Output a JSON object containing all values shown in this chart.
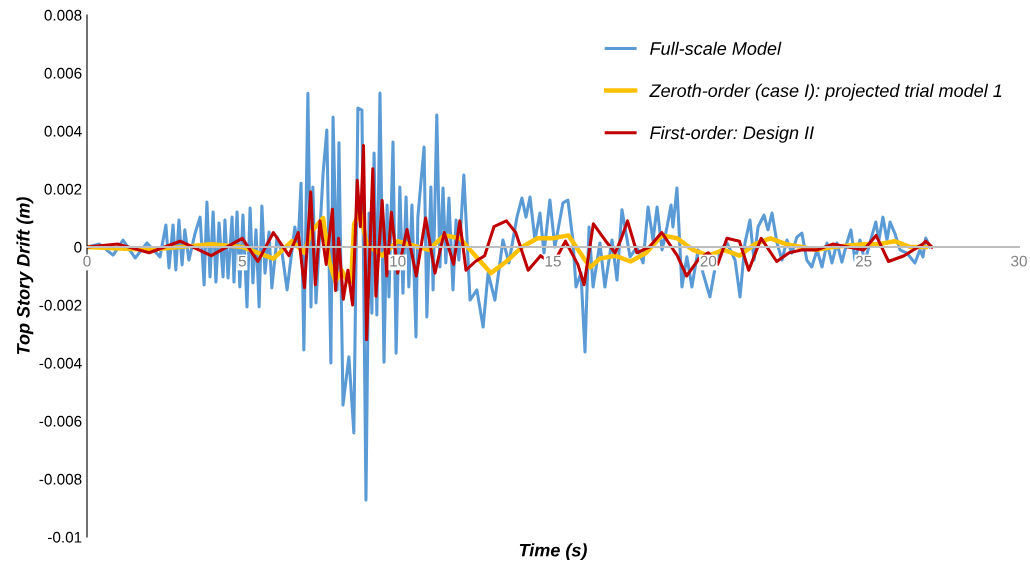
{
  "chart_data": {
    "type": "line",
    "xlabel": "Time (s)",
    "ylabel": "Top Story Drift (m)",
    "xlim": [
      0,
      30
    ],
    "xticks": [
      0,
      5,
      10,
      15,
      20,
      25,
      30
    ],
    "ylim": [
      -0.01,
      0.008
    ],
    "yticks": [
      -0.01,
      -0.008,
      -0.006,
      -0.004,
      -0.002,
      0,
      0.002,
      0.004,
      0.006,
      0.008
    ],
    "grid": false,
    "legend": "top right",
    "marker": "none",
    "line_style": "solid",
    "series": [
      {
        "name": "Full-scale Model",
        "color": "#5b9bd5",
        "x": [
          0,
          0.4,
          0.84,
          1.16,
          1.55,
          1.93,
          2.35,
          2.54,
          2.64,
          2.77,
          2.86,
          2.96,
          3.06,
          3.15,
          3.28,
          3.48,
          3.64,
          3.77,
          3.86,
          3.96,
          4.06,
          4.15,
          4.25,
          4.38,
          4.44,
          4.54,
          4.67,
          4.73,
          4.83,
          4.92,
          5.02,
          5.15,
          5.25,
          5.34,
          5.44,
          5.54,
          5.63,
          5.73,
          5.86,
          5.95,
          6.12,
          6.28,
          6.44,
          6.69,
          6.79,
          6.89,
          6.98,
          7.11,
          7.21,
          7.27,
          7.37,
          7.6,
          7.72,
          7.85,
          7.92,
          8.05,
          8.11,
          8.24,
          8.43,
          8.59,
          8.72,
          8.85,
          8.98,
          9.08,
          9.17,
          9.24,
          9.33,
          9.43,
          9.56,
          9.66,
          9.72,
          9.85,
          9.95,
          10.07,
          10.17,
          10.27,
          10.36,
          10.46,
          10.59,
          10.65,
          10.85,
          10.94,
          11.07,
          11.14,
          11.26,
          11.36,
          11.46,
          11.55,
          11.65,
          11.78,
          11.88,
          11.97,
          12.13,
          12.33,
          12.55,
          12.75,
          12.91,
          13.13,
          13.39,
          13.58,
          13.84,
          14.0,
          14.13,
          14.26,
          14.42,
          14.58,
          14.71,
          14.9,
          15.06,
          15.32,
          15.48,
          15.64,
          15.74,
          15.9,
          16.03,
          16.16,
          16.29,
          16.51,
          16.67,
          16.9,
          17.06,
          17.22,
          17.48,
          17.7,
          17.9,
          18.06,
          18.22,
          18.35,
          18.51,
          18.67,
          18.8,
          18.86,
          18.99,
          19.15,
          19.31,
          19.47,
          19.67,
          19.83,
          20.05,
          20.28,
          20.47,
          20.6,
          20.86,
          21.02,
          21.18,
          21.34,
          21.47,
          21.6,
          21.79,
          21.92,
          22.05,
          22.21,
          22.37,
          22.53,
          22.69,
          22.85,
          23.01,
          23.17,
          23.33,
          23.5,
          23.66,
          23.82,
          23.98,
          24.14,
          24.3,
          24.46,
          24.59,
          24.72,
          24.88,
          25.04,
          25.2,
          25.39,
          25.49,
          25.62,
          25.75,
          25.85,
          26.0,
          26.17,
          26.39,
          26.65,
          26.81,
          26.91,
          27.0,
          27.13
        ],
        "values": [
          0,
          0.0001,
          -0.00028,
          0.00024,
          -0.00038,
          0.00014,
          -0.00034,
          0.00076,
          -0.00072,
          0.00076,
          -0.00079,
          0.00093,
          -0.00062,
          0.00059,
          -0.00045,
          0.00048,
          0.00103,
          -0.00131,
          0.00155,
          -0.00103,
          0.00121,
          -0.00121,
          0.00083,
          -0.00103,
          0.00093,
          -0.00107,
          0.00103,
          -0.00121,
          0.00121,
          -0.00138,
          0.0011,
          -0.00207,
          0.00134,
          -0.00124,
          0.00059,
          -0.00207,
          0.00141,
          -0.0009,
          0.00052,
          -0.00141,
          0.00034,
          -0.00021,
          -0.00148,
          0.00069,
          0,
          0.0022,
          -0.00355,
          0.0053,
          -0.00207,
          0.00207,
          -0.00193,
          0.00255,
          0.00403,
          -0.004,
          0.00448,
          -0.00148,
          0.00359,
          -0.00545,
          -0.00379,
          -0.00641,
          0.00479,
          0.00472,
          -0.00872,
          0.00117,
          -0.00228,
          0.00324,
          -0.00234,
          0.00531,
          -0.00397,
          0.00145,
          -0.00172,
          0.00362,
          -0.00366,
          0.00207,
          -0.00159,
          0.00172,
          -0.00138,
          0.00145,
          -0.0031,
          0.00103,
          0.00345,
          -0.00241,
          0.00207,
          -0.00148,
          0.00455,
          -0.00069,
          0.00203,
          -0.00055,
          0.00169,
          -0.00148,
          0.00093,
          -0.00045,
          0.00248,
          -0.00183,
          -0.00148,
          -0.00276,
          -0.0009,
          -0.00183,
          0.00024,
          -0.00055,
          0.00103,
          0.00169,
          0.00103,
          0.00172,
          0.00024,
          0.00117,
          -0.00021,
          0.00162,
          0,
          0.00152,
          0.00162,
          0.00024,
          -0.00138,
          -0.0009,
          -0.00362,
          0.00069,
          -0.00138,
          0.00014,
          -0.00138,
          0.00024,
          -0.00114,
          0.00128,
          -0.00034,
          0,
          -0.00055,
          0.00138,
          0.00024,
          0.00138,
          -0.0001,
          0.00069,
          0.00145,
          0.00069,
          0.00203,
          -0.00138,
          -0.00034,
          -0.00138,
          -0.0001,
          -0.0009,
          -0.00172,
          -0.00034,
          0,
          0.00014,
          -0.00045,
          -0.00172,
          0.00014,
          0.00093,
          -0.00045,
          0.00069,
          0.0011,
          0.00059,
          0.00117,
          0.00014,
          -0.00045,
          0.00024,
          -0.00021,
          0.00034,
          0.00048,
          -0.00045,
          -0.00069,
          -0.0001,
          -0.00069,
          0.00014,
          -0.00055,
          0.00014,
          -0.00052,
          0.00014,
          0.00059,
          -0.00045,
          0.00024,
          -0.00052,
          0.00014,
          0.00086,
          0.00024,
          0.00103,
          0.00024,
          0.00086,
          0.00048,
          -0.0001,
          -0.00021,
          -0.00055,
          -0.0001,
          -0.00034,
          0.00031,
          0
        ]
      },
      {
        "name": "Zeroth-order (case I): projected trial model 1",
        "color": "#ffc000",
        "x": [
          0,
          2,
          4,
          5,
          6,
          6.6,
          7.0,
          7.2,
          7.6,
          7.8,
          8.0,
          8.2,
          8.4,
          8.5,
          8.6,
          8.8,
          9.0,
          9.5,
          10,
          11,
          11.5,
          12.0,
          12.5,
          13.0,
          13.5,
          14,
          14.5,
          15,
          15.5,
          16,
          16.2,
          16.5,
          17.0,
          17.5,
          18.0,
          18.5,
          19,
          19.5,
          20,
          20.5,
          21.0,
          21.5,
          22,
          22.5,
          23,
          23.5,
          24,
          25,
          25.5,
          26,
          26.5,
          27
        ],
        "values": [
          0,
          -0.0001,
          0.0001,
          0,
          -0.0004,
          0.0002,
          -0.0002,
          0.0005,
          0.001,
          -0.0005,
          -0.0012,
          -0.0008,
          -0.0012,
          -0.0012,
          0.0008,
          0.0012,
          0.0001,
          -0.0003,
          0.0002,
          -0.0001,
          0.0004,
          0.0003,
          -0.0003,
          -0.0009,
          -0.0005,
          0,
          0.0003,
          0.0003,
          0.0004,
          -0.0004,
          -0.0007,
          -0.0004,
          -0.0003,
          -0.0005,
          -0.0002,
          0.0004,
          0.0003,
          -0.0001,
          -0.0003,
          -0.0001,
          -0.0003,
          0.0001,
          0.0003,
          0.0001,
          0,
          -0.0001,
          0,
          0.0001,
          0.0001,
          0.0002,
          0,
          0
        ]
      },
      {
        "name": "First-order: Design II",
        "color": "#c00000",
        "x": [
          0,
          1,
          2,
          3,
          4,
          5,
          5.5,
          6,
          6.5,
          6.8,
          7.0,
          7.2,
          7.35,
          7.5,
          7.7,
          7.9,
          8.0,
          8.1,
          8.25,
          8.4,
          8.55,
          8.7,
          8.8,
          8.9,
          9.0,
          9.2,
          9.3,
          9.5,
          9.65,
          9.8,
          10.0,
          10.3,
          10.6,
          10.9,
          11.2,
          11.5,
          11.8,
          12.0,
          12.2,
          12.5,
          12.8,
          13.1,
          13.5,
          13.8,
          14.2,
          14.6,
          15.0,
          15.4,
          15.8,
          16.0,
          16.3,
          16.7,
          17.0,
          17.2,
          17.4,
          17.7,
          18.1,
          18.5,
          19.0,
          19.3,
          19.7,
          20.0,
          20.3,
          20.6,
          21.0,
          21.3,
          21.7,
          22.2,
          22.6,
          23.0,
          23.5,
          24.0,
          24.5,
          25.0,
          25.4,
          25.8,
          26.3,
          26.9,
          27.0,
          27.2
        ],
        "values": [
          0,
          0.0001,
          -0.0002,
          0.0002,
          -0.0003,
          0.0003,
          -0.0005,
          0.0005,
          -0.0003,
          0.0005,
          -0.0014,
          0.0019,
          -0.0013,
          0.0009,
          -0.0006,
          0.0013,
          -0.0015,
          0.0003,
          -0.0018,
          -0.0008,
          -0.002,
          0.0023,
          0.0007,
          0.0035,
          -0.0032,
          0.0027,
          -0.0017,
          0.0016,
          -0.001,
          0.0012,
          -0.0009,
          0.0006,
          -0.001,
          0.001,
          -0.0009,
          0.0005,
          -0.0006,
          0.0009,
          -0.0008,
          -0.0005,
          -0.0003,
          0.0007,
          0.0009,
          0.0005,
          -0.0008,
          -0.0003,
          -0.0006,
          0.0002,
          -0.0006,
          -0.0013,
          0.0008,
          0.0002,
          -0.0002,
          0.0003,
          0.0009,
          -0.0002,
          0,
          0.0005,
          -0.0003,
          -0.001,
          -0.0004,
          -0.0002,
          -0.0006,
          0.0003,
          0.0002,
          -0.0008,
          0.0003,
          -0.0005,
          -0.0002,
          -0.0001,
          -0.0001,
          0.0001,
          0,
          -0.0001,
          0.0004,
          -0.0005,
          -0.0003,
          0.0001,
          0.0002,
          0
        ]
      }
    ]
  }
}
